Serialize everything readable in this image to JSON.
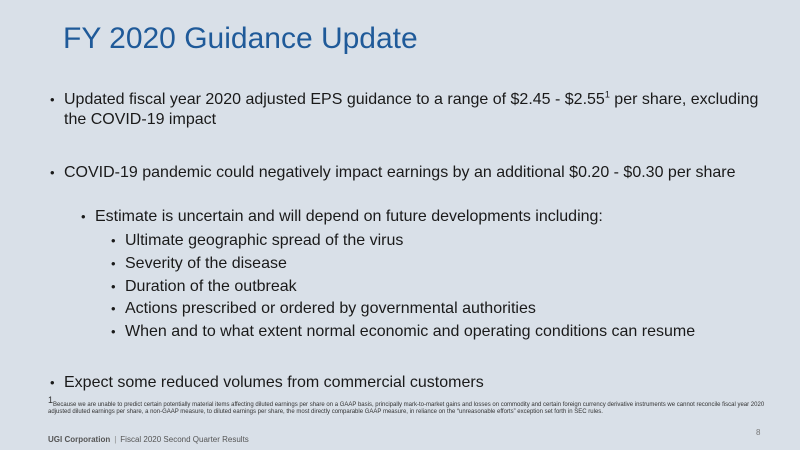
{
  "slide": {
    "title": "FY 2020 Guidance Update",
    "bullets": {
      "b1_text": "Updated fiscal year 2020 adjusted EPS guidance to a range of $2.45 - $2.55",
      "b1_sup": "1",
      "b1_text_after": " per share, excluding the COVID-19 impact",
      "b2_text": "COVID-19 pandemic could negatively impact earnings by an additional $0.20 - $0.30 per share",
      "sub_text": "Estimate is uncertain and will depend on future developments including:",
      "subsub": [
        "Ultimate geographic spread of the virus",
        "Severity of the disease",
        "Duration of the outbreak",
        "Actions prescribed or ordered by governmental authorities",
        "When and to what extent normal economic and operating conditions can resume"
      ],
      "b3_text": "Expect some reduced volumes from commercial customers"
    },
    "footnote": {
      "sup": "1",
      "text": "Because we are unable to predict certain potentially material items affecting diluted earnings per share on a GAAP basis, principally mark-to-market gains and losses on commodity and certain foreign currency derivative instruments we cannot reconcile fiscal year 2020 adjusted diluted earnings per share, a non-GAAP measure, to diluted earnings per share, the most directly comparable GAAP measure, in reliance on the “unreasonable efforts” exception set forth in SEC rules."
    },
    "footer": {
      "company": "UGI Corporation",
      "separator": "|",
      "subtitle": "Fiscal 2020 Second Quarter Results",
      "page_number": "8"
    },
    "bullet_glyph": "•",
    "colors": {
      "background": "#d9e0e8",
      "title": "#1f5a99",
      "text": "#1a1a1a"
    }
  }
}
